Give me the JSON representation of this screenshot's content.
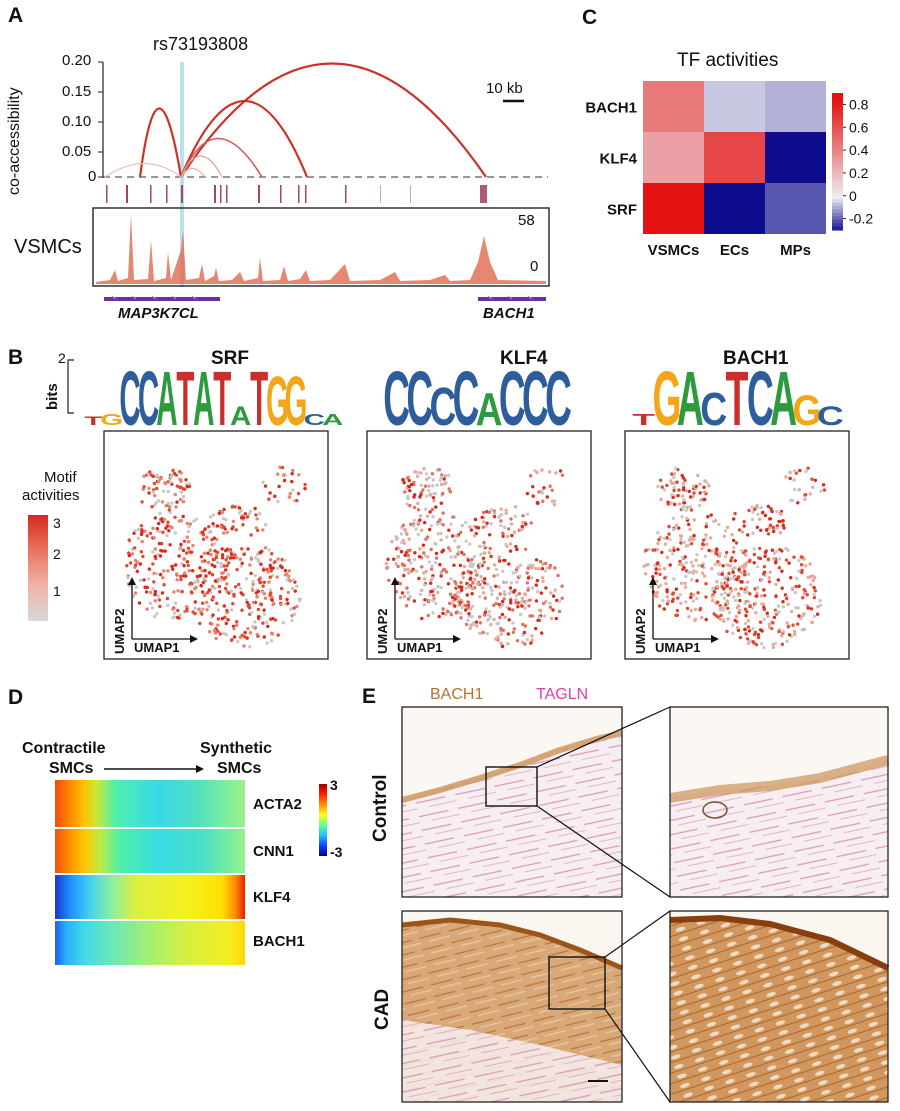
{
  "panel_a": {
    "label": "A",
    "snp": "rs73193808",
    "y_axis_label": "co-accessibility",
    "y_ticks": [
      "0.20",
      "0.15",
      "0.10",
      "0.05",
      "0"
    ],
    "scale_bar": "10 kb",
    "track_name": "VSMCs",
    "track_max": "58",
    "track_min": "0",
    "gene_left": "MAP3K7CL",
    "gene_right": "BACH1"
  },
  "panel_b": {
    "label": "B",
    "logo_axis_label": "bits",
    "logo_axis_max": "2",
    "motifs": [
      {
        "tf": "SRF",
        "letters": [
          "T",
          "G",
          "C",
          "C",
          "A",
          "T",
          "A",
          "T",
          "A",
          "T",
          "G",
          "G",
          "C",
          "A"
        ]
      },
      {
        "tf": "KLF4",
        "letters": [
          "C",
          "C",
          "C",
          "C",
          "A",
          "C",
          "C",
          "C"
        ]
      },
      {
        "tf": "BACH1",
        "letters": [
          "T",
          "G",
          "A",
          "C",
          "T",
          "C",
          "A",
          "G",
          "C"
        ]
      }
    ],
    "legend_title_line1": "Motif",
    "legend_title_line2": "activities",
    "legend_ticks": [
      "3",
      "2",
      "1"
    ],
    "umap_x": "UMAP1",
    "umap_y": "UMAP2"
  },
  "panel_c": {
    "label": "C",
    "title": "TF activities",
    "chart_data": {
      "type": "heatmap",
      "title": "TF activities",
      "rows": [
        "BACH1",
        "KLF4",
        "SRF"
      ],
      "columns": [
        "VSMCs",
        "ECs",
        "MPs"
      ],
      "values": [
        [
          0.45,
          -0.05,
          -0.08
        ],
        [
          0.3,
          0.65,
          -0.3
        ],
        [
          0.85,
          -0.3,
          -0.2
        ]
      ],
      "colorbar_ticks": [
        "0.8",
        "0.6",
        "0.4",
        "0.2",
        "0",
        "-0.2"
      ],
      "colorbar_range": [
        -0.3,
        0.9
      ]
    }
  },
  "panel_d": {
    "label": "D",
    "from_line1": "Contractile",
    "from_line2": "SMCs",
    "to_line1": "Synthetic",
    "to_line2": "SMCs",
    "genes": [
      "ACTA2",
      "CNN1",
      "KLF4",
      "BACH1"
    ],
    "colorbar_max": "3",
    "colorbar_min": "-3"
  },
  "panel_e": {
    "label": "E",
    "stain1": "BACH1",
    "stain2": "TAGLN",
    "stain1_color": "#b8732a",
    "stain2_color": "#e040a8",
    "row1": "Control",
    "row2": "CAD"
  }
}
